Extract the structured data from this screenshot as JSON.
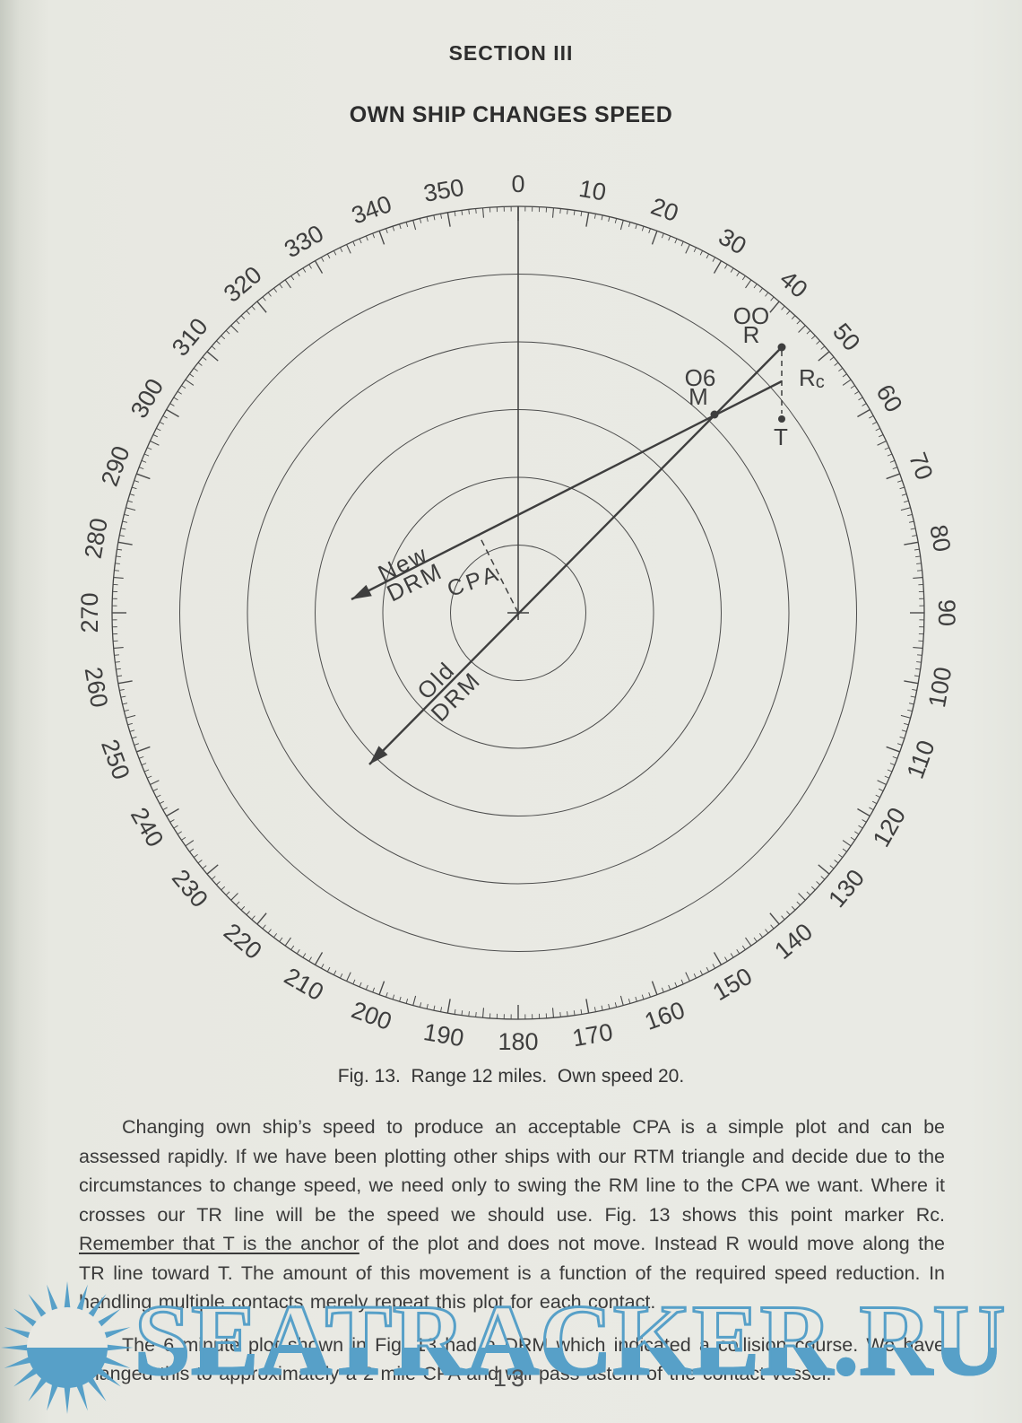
{
  "page": {
    "section_title": "SECTION III",
    "doc_title": "OWN SHIP CHANGES SPEED",
    "caption": "Fig. 13.  Range 12 miles.  Own speed 20.",
    "page_number": "13"
  },
  "figure": {
    "type": "maneuvering-board-radar-plot",
    "range_miles": 12,
    "own_speed_knots": 20,
    "ring_count": 6,
    "miles_per_ring": 2,
    "degree_labels": [
      "0",
      "10",
      "20",
      "30",
      "40",
      "50",
      "60",
      "70",
      "80",
      "90",
      "100",
      "110",
      "120",
      "130",
      "140",
      "150",
      "160",
      "170",
      "180",
      "190",
      "200",
      "210",
      "220",
      "230",
      "240",
      "250",
      "260",
      "270",
      "280",
      "290",
      "300",
      "310",
      "320",
      "330",
      "340",
      "350"
    ],
    "points": {
      "r_time_label": "OO",
      "r_label": "R",
      "m_time_label": "O6",
      "m_label": "M",
      "rc_label_main": "R",
      "rc_label_sub": "c",
      "t_label": "T"
    },
    "annotations": {
      "new_drm_line1": "New",
      "new_drm_line2": "DRM",
      "old_drm_line1": "Old",
      "old_drm_line2": "DRM",
      "cpa_label": "CPA"
    }
  },
  "body": {
    "p1_seg1": "Changing own ship’s speed to produce an acceptable CPA is a simple plot and can be assessed rapidly. If we have been plotting other ships with our RTM triangle and decide due to the circumstances to change speed, we need only to swing the RM line to the CPA we want. Where it crosses our TR line will be the speed we should use. Fig. 13 shows this point marker Rc. ",
    "p1_underlined": "Remember that T is the anchor",
    "p1_seg3": " of the plot and does not move. Instead R would move along the TR line toward T. The amount of this movement is a function of the required speed reduction. In handling multiple contacts merely repeat this plot for each contact.",
    "p2": "The 6 minute plot shown in Fig. 13 had a DRM which indicated a collision course. We have changed this to approximately a 2 mile CPA and will pass astern of the contact vessel."
  },
  "watermark": {
    "text": "SEATRACKER.RU",
    "color": "#57a0c8",
    "paper_color": "#e9e9e3"
  }
}
